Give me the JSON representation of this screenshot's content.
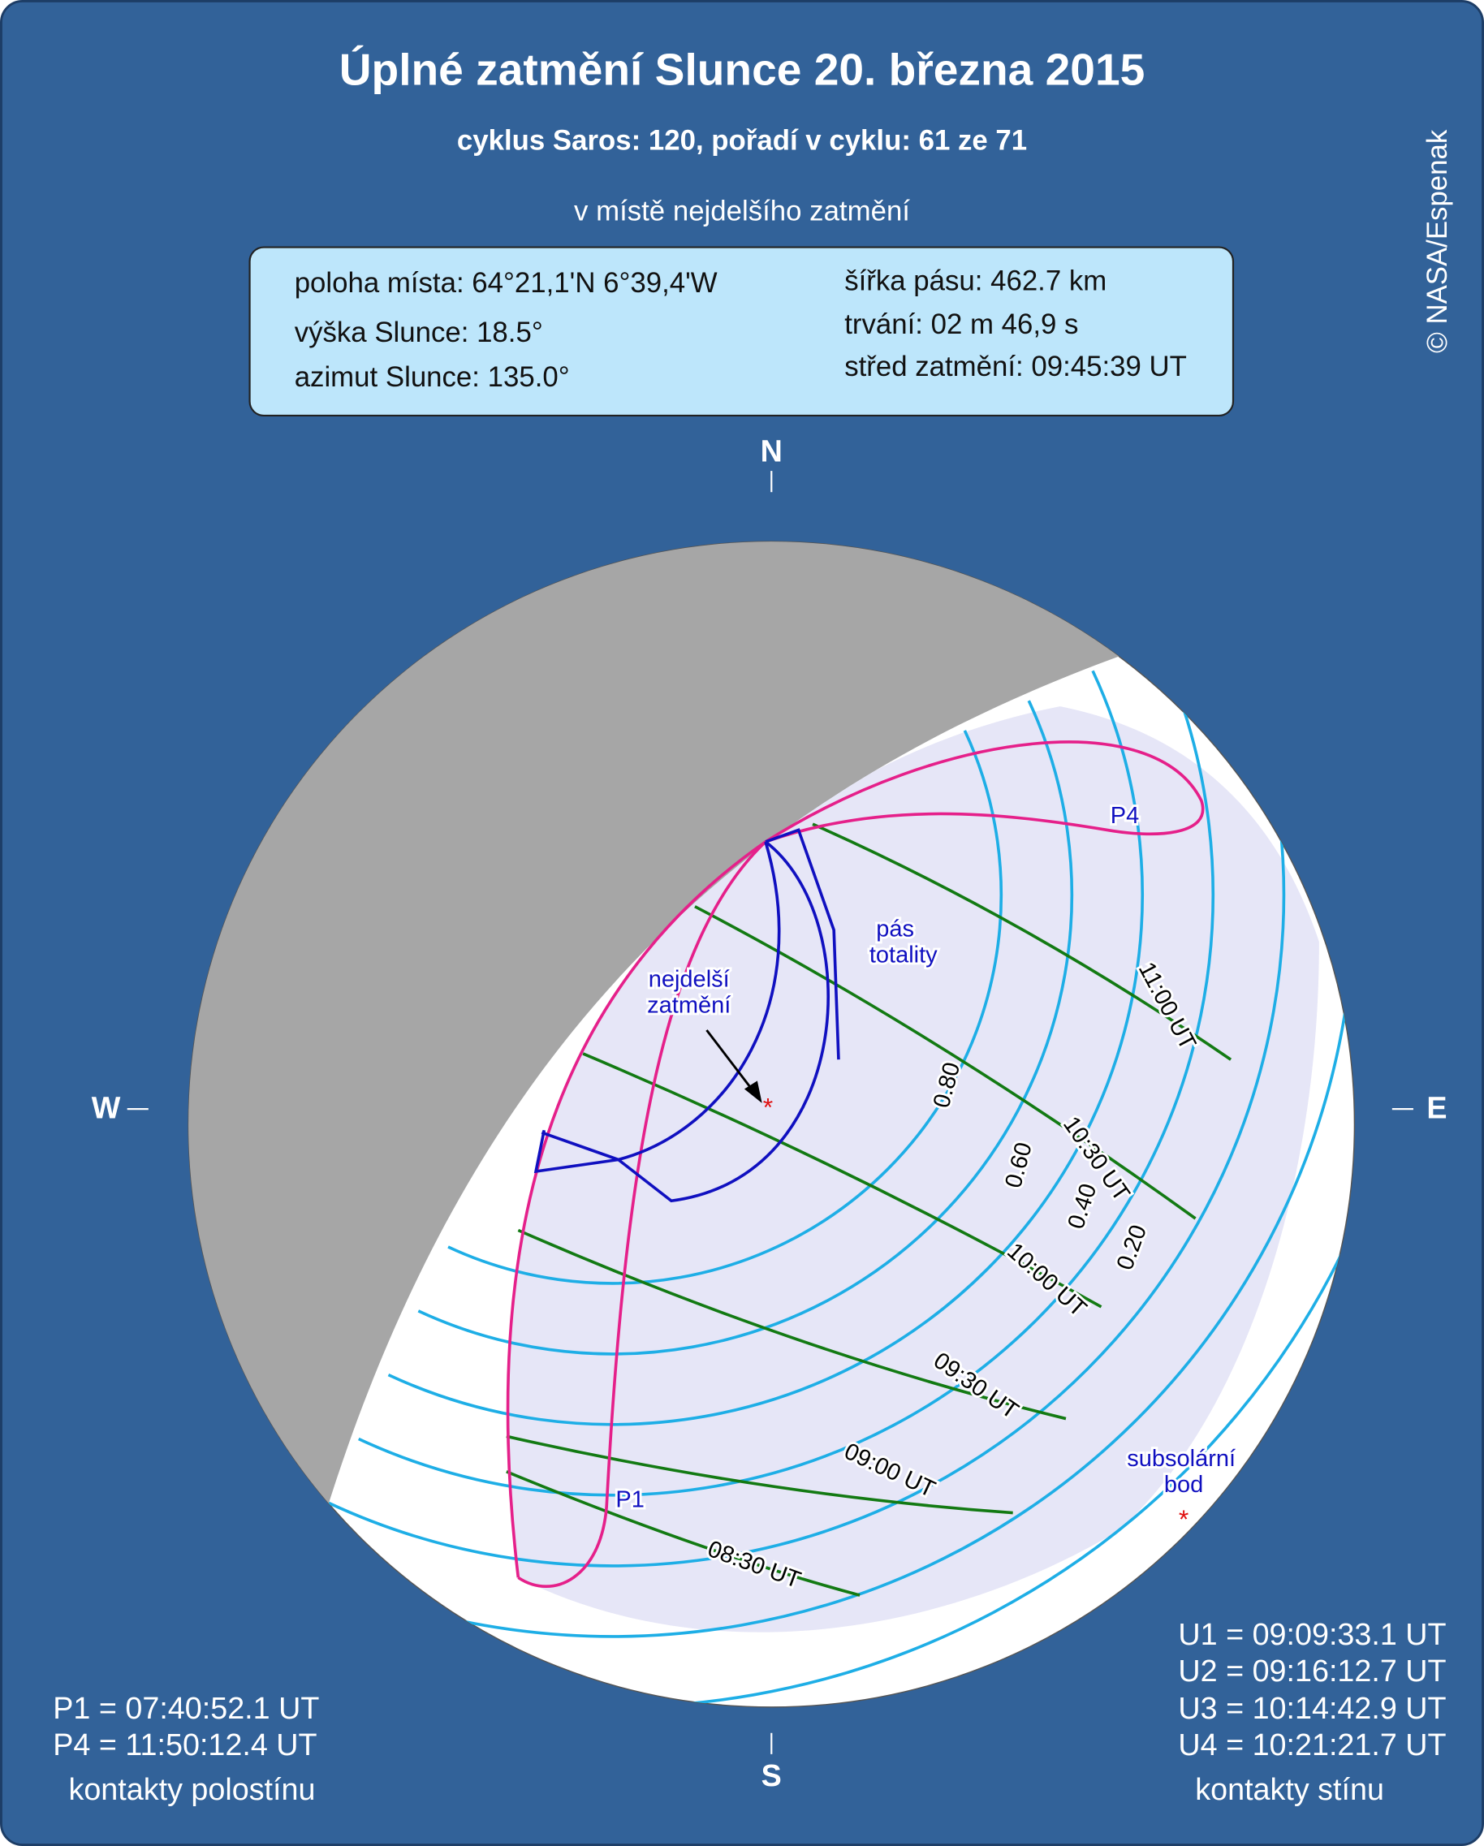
{
  "header": {
    "title": "Úplné zatmění Slunce 20. března 2015",
    "subtitle": "cyklus Saros: 120, pořadí v cyklu: 61 ze 71",
    "note": "v místě nejdelšího zatmění"
  },
  "info": {
    "left": [
      "poloha místa: 64°21,1'N  6°39,4'W",
      "výška Slunce: 18.5°",
      "azimut Slunce: 135.0°"
    ],
    "right": [
      "šířka pásu: 462.7 km",
      "trvání:  02 m 46,9 s",
      "střed zatmění: 09:45:39 UT"
    ]
  },
  "copyright": "© NASA/Espenak",
  "compass": {
    "n": "N",
    "s": "S",
    "w": "W",
    "e": "E"
  },
  "map_labels": [
    "P4",
    "P1",
    "pás",
    "totality",
    "nejdelší",
    "zatmění",
    "subsolární",
    "bod",
    "11:00 UT",
    "10:30 UT",
    "10:00 UT",
    "09:30 UT",
    "09:00 UT",
    "08:30 UT",
    "0.80",
    "0.60",
    "0.40",
    "0.20"
  ],
  "penumbra_contacts": {
    "lines": [
      "P1 = 07:40:52.1 UT",
      "P4 = 11:50:12.4 UT"
    ],
    "caption": "kontakty polostínu"
  },
  "umbra_contacts": {
    "lines": [
      "U1 = 09:09:33.1 UT",
      "U2 = 09:16:12.7 UT",
      "U3 = 10:14:42.9 UT",
      "U4 = 10:21:21.7 UT"
    ],
    "caption": "kontakty stínu"
  }
}
